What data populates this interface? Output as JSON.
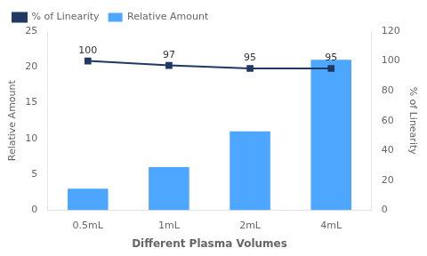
{
  "chart_data": {
    "type": "bar",
    "categories": [
      "0.5mL",
      "1mL",
      "2mL",
      "4mL"
    ],
    "xlabel": "Different Plasma Volumes",
    "ylabel": "Relative Amount",
    "y2label": "% of Linearity",
    "series": [
      {
        "name": "Relative Amount",
        "type": "bar",
        "color": "#4DA6FF",
        "values": [
          3,
          6,
          11,
          21
        ]
      },
      {
        "name": "% of Linearity",
        "type": "line",
        "color": "#1F3864",
        "marker": "square",
        "axis": "y2",
        "data_labels": true,
        "values": [
          100,
          97,
          95,
          95
        ]
      }
    ],
    "ylim": [
      0,
      25
    ],
    "yticks": [
      0,
      5,
      10,
      15,
      20,
      25
    ],
    "y2lim": [
      0,
      120
    ],
    "y2ticks": [
      0,
      20,
      40,
      60,
      80,
      100,
      120
    ],
    "grid": false,
    "legend": "upper left"
  }
}
